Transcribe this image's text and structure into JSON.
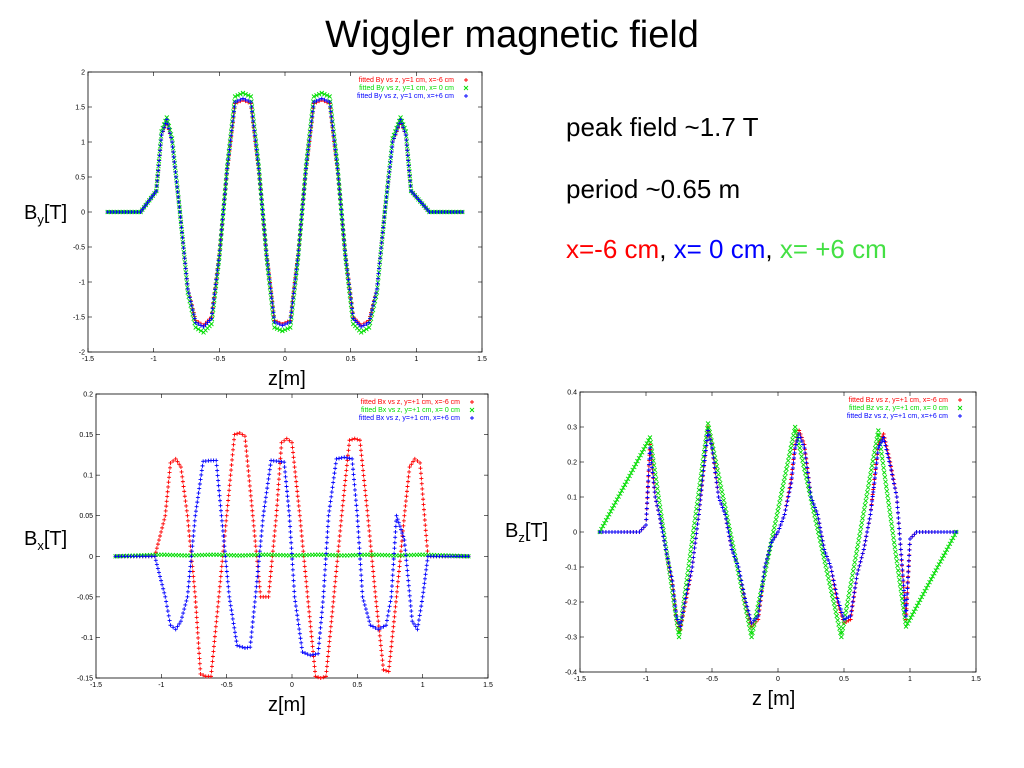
{
  "title": "Wiggler magnetic field",
  "notes": {
    "peak": "peak field ~1.7 T",
    "period": "period ~0.65 m",
    "x_neg": "x=-6 cm",
    "sep1": ", ",
    "x_zero": "x= 0 cm",
    "sep2": ", ",
    "x_pos": "x= +6 cm"
  },
  "colors": {
    "red": "#ff0000",
    "green": "#00dd00",
    "blue": "#0000ff",
    "note_green": "#44e044"
  },
  "labels": {
    "by": {
      "main": "B",
      "sub": "y",
      "unit": "[T]"
    },
    "bx": {
      "main": "B",
      "sub": "x",
      "unit": "[T]"
    },
    "bz": {
      "main": "B",
      "sub": "z",
      "unit": "[T]"
    },
    "z1": "z[m]",
    "z2": "z[m]",
    "z3": "z [m]"
  },
  "chart_data": [
    {
      "id": "by",
      "type": "scatter",
      "xlim": [
        -1.5,
        1.5
      ],
      "ylim": [
        -2,
        2
      ],
      "xticks": [
        "-1.5",
        "-1",
        "-0.5",
        "0",
        "0.5",
        "1",
        "1.5"
      ],
      "yticks": [
        "-2",
        "-1.5",
        "-1",
        "-0.5",
        "0",
        "0.5",
        "1",
        "1.5",
        "2"
      ],
      "xlabel": "z[m]",
      "ylabel": "By[T]",
      "legend": "top-right",
      "series": [
        {
          "name": "fitted By vs z, y=1 cm, x=-6 cm",
          "color": "#ff0000",
          "marker": "+",
          "x": [
            -1.35,
            -1.1,
            -0.98,
            -0.94,
            -0.9,
            -0.86,
            -0.8,
            -0.74,
            -0.68,
            -0.62,
            -0.56,
            -0.5,
            -0.44,
            -0.38,
            -0.32,
            -0.26,
            -0.2,
            -0.14,
            -0.08,
            -0.02,
            0.04,
            0.1,
            0.16,
            0.22,
            0.28,
            0.34,
            0.4,
            0.46,
            0.52,
            0.58,
            0.64,
            0.7,
            0.76,
            0.82,
            0.88,
            0.92,
            0.96,
            1.1,
            1.35
          ],
          "y": [
            0,
            0,
            0.3,
            1.1,
            1.3,
            1.0,
            0,
            -1.1,
            -1.55,
            -1.62,
            -1.5,
            -0.6,
            0.6,
            1.55,
            1.6,
            1.55,
            0.6,
            -0.6,
            -1.55,
            -1.6,
            -1.55,
            -0.6,
            0.6,
            1.55,
            1.6,
            1.55,
            0.6,
            -0.6,
            -1.5,
            -1.62,
            -1.55,
            -1.1,
            0,
            1.0,
            1.3,
            1.1,
            0.3,
            0,
            0
          ]
        },
        {
          "name": "fitted By vs z, y=1 cm, x= 0 cm",
          "color": "#00dd00",
          "marker": "x",
          "x": [
            -1.35,
            -1.1,
            -0.98,
            -0.94,
            -0.9,
            -0.86,
            -0.8,
            -0.74,
            -0.68,
            -0.62,
            -0.56,
            -0.5,
            -0.44,
            -0.38,
            -0.32,
            -0.26,
            -0.2,
            -0.14,
            -0.08,
            -0.02,
            0.04,
            0.1,
            0.16,
            0.22,
            0.28,
            0.34,
            0.4,
            0.46,
            0.52,
            0.58,
            0.64,
            0.7,
            0.76,
            0.82,
            0.88,
            0.92,
            0.96,
            1.1,
            1.35
          ],
          "y": [
            0,
            0,
            0.3,
            1.15,
            1.35,
            1.05,
            0,
            -1.15,
            -1.65,
            -1.72,
            -1.6,
            -0.65,
            0.65,
            1.65,
            1.7,
            1.65,
            0.65,
            -0.65,
            -1.65,
            -1.7,
            -1.65,
            -0.65,
            0.65,
            1.65,
            1.7,
            1.65,
            0.65,
            -0.65,
            -1.6,
            -1.72,
            -1.65,
            -1.15,
            0,
            1.05,
            1.35,
            1.15,
            0.3,
            0,
            0
          ]
        },
        {
          "name": "fitted By vs z, y=1 cm, x=+6 cm",
          "color": "#0000ff",
          "marker": "+",
          "x": [
            -1.35,
            -1.1,
            -0.98,
            -0.94,
            -0.9,
            -0.86,
            -0.8,
            -0.74,
            -0.68,
            -0.62,
            -0.56,
            -0.5,
            -0.44,
            -0.38,
            -0.32,
            -0.26,
            -0.2,
            -0.14,
            -0.08,
            -0.02,
            0.04,
            0.1,
            0.16,
            0.22,
            0.28,
            0.34,
            0.4,
            0.46,
            0.52,
            0.58,
            0.64,
            0.7,
            0.76,
            0.82,
            0.88,
            0.92,
            0.96,
            1.1,
            1.35
          ],
          "y": [
            0,
            0,
            0.3,
            1.1,
            1.32,
            1.0,
            0,
            -1.1,
            -1.58,
            -1.64,
            -1.52,
            -0.62,
            0.62,
            1.57,
            1.62,
            1.57,
            0.62,
            -0.62,
            -1.57,
            -1.62,
            -1.57,
            -0.62,
            0.62,
            1.57,
            1.62,
            1.57,
            0.62,
            -0.62,
            -1.52,
            -1.64,
            -1.58,
            -1.1,
            0,
            1.0,
            1.32,
            1.1,
            0.3,
            0,
            0
          ]
        }
      ]
    },
    {
      "id": "bx",
      "type": "scatter",
      "xlim": [
        -1.5,
        1.5
      ],
      "ylim": [
        -0.15,
        0.2
      ],
      "xticks": [
        "-1.5",
        "-1",
        "-0.5",
        "0",
        "0.5",
        "1",
        "1.5"
      ],
      "yticks": [
        "-0.15",
        "-0.1",
        "-0.05",
        "0",
        "0.05",
        "0.1",
        "0.15",
        "0.2"
      ],
      "xlabel": "z[m]",
      "ylabel": "Bx[T]",
      "legend": "top-right",
      "series": [
        {
          "name": "fitted Bx vs z, y=+1 cm, x=-6 cm",
          "color": "#ff0000",
          "marker": "+",
          "x": [
            -1.35,
            -1.05,
            -0.97,
            -0.93,
            -0.89,
            -0.85,
            -0.8,
            -0.74,
            -0.7,
            -0.66,
            -0.62,
            -0.56,
            -0.5,
            -0.44,
            -0.4,
            -0.36,
            -0.3,
            -0.24,
            -0.18,
            -0.12,
            -0.08,
            -0.04,
            0.0,
            0.06,
            0.12,
            0.18,
            0.22,
            0.26,
            0.32,
            0.38,
            0.44,
            0.48,
            0.52,
            0.58,
            0.64,
            0.7,
            0.74,
            0.8,
            0.86,
            0.9,
            0.94,
            0.98,
            1.04,
            1.35
          ],
          "y": [
            0,
            0,
            0.05,
            0.115,
            0.12,
            0.11,
            0.05,
            -0.05,
            -0.145,
            -0.148,
            -0.148,
            -0.05,
            0.05,
            0.15,
            0.152,
            0.148,
            0.05,
            -0.05,
            -0.05,
            0.05,
            0.14,
            0.145,
            0.14,
            0.05,
            -0.05,
            -0.148,
            -0.15,
            -0.148,
            -0.05,
            0.05,
            0.143,
            0.145,
            0.143,
            0.05,
            -0.05,
            -0.14,
            -0.142,
            -0.05,
            0.05,
            0.11,
            0.12,
            0.115,
            0,
            0
          ]
        },
        {
          "name": "fitted Bx vs z, y=+1 cm, x= 0 cm",
          "color": "#00dd00",
          "marker": "x",
          "x": [
            -1.35,
            -1.0,
            -0.8,
            -0.6,
            -0.4,
            -0.2,
            0.0,
            0.2,
            0.4,
            0.6,
            0.8,
            1.0,
            1.35
          ],
          "y": [
            0,
            0.002,
            0.001,
            0.002,
            0.001,
            0.002,
            0.001,
            0.002,
            0.001,
            0.002,
            0.001,
            0.002,
            0
          ]
        },
        {
          "name": "fitted Bx vs z, y=+1 cm, x=+6 cm",
          "color": "#0000ff",
          "marker": "+",
          "x": [
            -1.35,
            -1.05,
            -0.97,
            -0.93,
            -0.89,
            -0.85,
            -0.8,
            -0.74,
            -0.68,
            -0.62,
            -0.58,
            -0.54,
            -0.48,
            -0.42,
            -0.36,
            -0.32,
            -0.28,
            -0.22,
            -0.16,
            -0.1,
            -0.06,
            -0.02,
            0.02,
            0.08,
            0.14,
            0.2,
            0.24,
            0.28,
            0.34,
            0.4,
            0.46,
            0.5,
            0.54,
            0.6,
            0.66,
            0.72,
            0.76,
            0.8,
            0.86,
            0.92,
            0.96,
            1.0,
            1.04,
            1.35
          ],
          "y": [
            0,
            0,
            -0.05,
            -0.085,
            -0.09,
            -0.08,
            -0.05,
            0.05,
            0.117,
            0.118,
            0.118,
            0.05,
            -0.05,
            -0.11,
            -0.113,
            -0.112,
            -0.05,
            0.05,
            0.118,
            0.117,
            0.116,
            0.05,
            -0.05,
            -0.118,
            -0.122,
            -0.12,
            -0.05,
            0.05,
            0.12,
            0.122,
            0.12,
            0.05,
            -0.05,
            -0.085,
            -0.09,
            -0.085,
            -0.05,
            0.05,
            0.02,
            -0.08,
            -0.09,
            -0.05,
            0,
            0
          ]
        }
      ]
    },
    {
      "id": "bz",
      "type": "scatter",
      "xlim": [
        -1.5,
        1.5
      ],
      "ylim": [
        -0.4,
        0.4
      ],
      "xticks": [
        "-1.5",
        "-1",
        "-0.5",
        "0",
        "0.5",
        "1",
        "1.5"
      ],
      "yticks": [
        "-0.4",
        "-0.3",
        "-0.2",
        "-0.1",
        "0",
        "0.1",
        "0.2",
        "0.3",
        "0.4"
      ],
      "xlabel": "z [m]",
      "ylabel": "Bz[T]",
      "legend": "top-right",
      "series": [
        {
          "name": "fitted Bz vs z, y=+1 cm, x=-6 cm",
          "color": "#ff0000",
          "marker": "+",
          "x": [
            -1.35,
            -1.05,
            -1.0,
            -0.97,
            -0.95,
            -0.93,
            -0.9,
            -0.85,
            -0.8,
            -0.77,
            -0.74,
            -0.7,
            -0.65,
            -0.6,
            -0.56,
            -0.53,
            -0.5,
            -0.45,
            -0.4,
            -0.35,
            -0.3,
            -0.25,
            -0.2,
            -0.15,
            -0.1,
            -0.05,
            0.0,
            0.05,
            0.1,
            0.13,
            0.16,
            0.2,
            0.25,
            0.3,
            0.35,
            0.4,
            0.45,
            0.5,
            0.55,
            0.6,
            0.65,
            0.7,
            0.73,
            0.76,
            0.8,
            0.85,
            0.9,
            0.93,
            0.97,
            1.0,
            1.05,
            1.35
          ],
          "y": [
            0,
            0,
            0.02,
            0.25,
            0.18,
            0.1,
            0.05,
            -0.05,
            -0.15,
            -0.25,
            -0.28,
            -0.2,
            -0.1,
            0.05,
            0.2,
            0.3,
            0.25,
            0.1,
            0.05,
            -0.05,
            -0.1,
            -0.2,
            -0.27,
            -0.25,
            -0.1,
            -0.03,
            0,
            0.05,
            0.15,
            0.25,
            0.29,
            0.25,
            0.1,
            0.05,
            -0.05,
            -0.1,
            -0.2,
            -0.26,
            -0.25,
            -0.12,
            -0.05,
            0.05,
            0.15,
            0.25,
            0.28,
            0.2,
            0.1,
            -0.05,
            -0.25,
            -0.02,
            0,
            0
          ]
        },
        {
          "name": "fitted Bz vs z, y=+1 cm, x= 0 cm",
          "color": "#00dd00",
          "marker": "x",
          "x": [
            -1.35,
            -0.97,
            -0.75,
            -0.53,
            -0.2,
            0.13,
            0.48,
            0.76,
            0.97,
            1.35
          ],
          "y": [
            0,
            0.27,
            -0.3,
            0.31,
            -0.3,
            0.3,
            -0.3,
            0.29,
            -0.27,
            0
          ]
        },
        {
          "name": "fitted Bz vs z, y=+1 cm, x=+6 cm",
          "color": "#0000ff",
          "marker": "+",
          "x": [
            -1.35,
            -1.05,
            -1.0,
            -0.97,
            -0.95,
            -0.93,
            -0.9,
            -0.85,
            -0.8,
            -0.77,
            -0.74,
            -0.7,
            -0.65,
            -0.6,
            -0.56,
            -0.53,
            -0.5,
            -0.45,
            -0.4,
            -0.35,
            -0.3,
            -0.25,
            -0.2,
            -0.15,
            -0.1,
            -0.05,
            0.0,
            0.05,
            0.1,
            0.13,
            0.16,
            0.2,
            0.25,
            0.3,
            0.35,
            0.4,
            0.45,
            0.5,
            0.55,
            0.6,
            0.65,
            0.7,
            0.73,
            0.76,
            0.8,
            0.85,
            0.9,
            0.93,
            0.97,
            1.0,
            1.05,
            1.35
          ],
          "y": [
            0,
            0,
            0.02,
            0.24,
            0.17,
            0.1,
            0.05,
            -0.05,
            -0.14,
            -0.24,
            -0.27,
            -0.19,
            -0.1,
            0.05,
            0.19,
            0.29,
            0.24,
            0.1,
            0.05,
            -0.05,
            -0.1,
            -0.19,
            -0.26,
            -0.24,
            -0.1,
            -0.03,
            0,
            0.05,
            0.14,
            0.24,
            0.28,
            0.24,
            0.1,
            0.05,
            -0.05,
            -0.1,
            -0.19,
            -0.25,
            -0.24,
            -0.12,
            -0.05,
            0.05,
            0.14,
            0.24,
            0.27,
            0.19,
            0.1,
            -0.05,
            -0.24,
            -0.02,
            0,
            0
          ]
        }
      ]
    }
  ]
}
